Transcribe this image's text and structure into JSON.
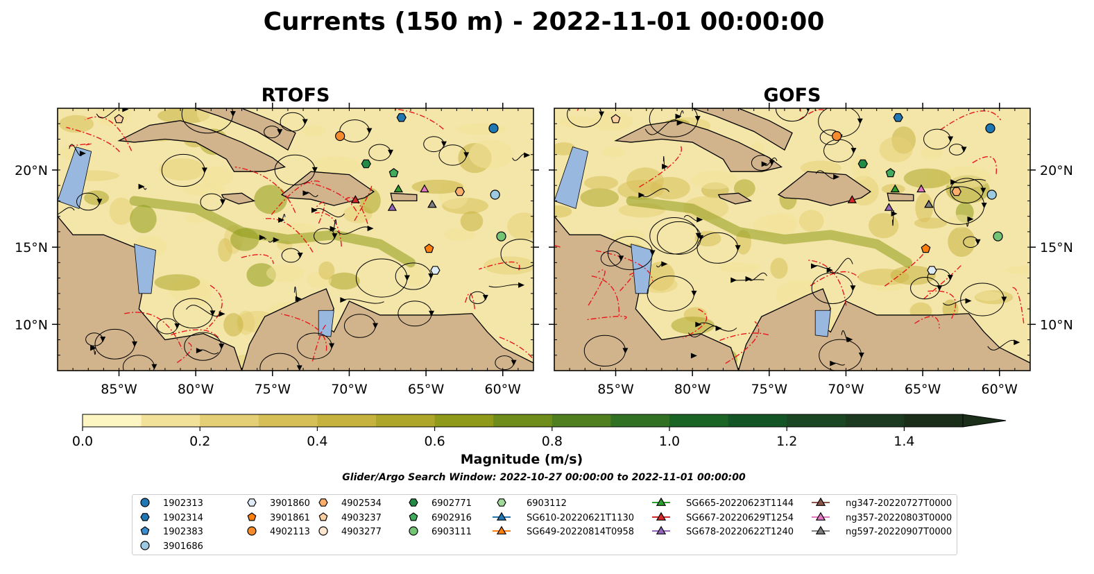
{
  "figure": {
    "title": "Currents (150 m) - 2022-11-01 00:00:00",
    "search_window": "Glider/Argo Search Window: 2022-10-27 00:00:00 to 2022-11-01 00:00:00"
  },
  "chart_data": {
    "type": "map",
    "panels": [
      {
        "title": "RTOFS",
        "lon_range": [
          -89,
          -58
        ],
        "lat_range": [
          7,
          24
        ]
      },
      {
        "title": "GOFS",
        "lon_range": [
          -89,
          -58
        ],
        "lat_range": [
          7,
          24
        ]
      }
    ],
    "x_ticks": [
      {
        "value": -85,
        "label": "85°W"
      },
      {
        "value": -80,
        "label": "80°W"
      },
      {
        "value": -75,
        "label": "75°W"
      },
      {
        "value": -70,
        "label": "70°W"
      },
      {
        "value": -65,
        "label": "65°W"
      },
      {
        "value": -60,
        "label": "60°W"
      }
    ],
    "y_ticks": [
      {
        "value": 10,
        "label": "10°N"
      },
      {
        "value": 15,
        "label": "15°N"
      },
      {
        "value": 20,
        "label": "20°N"
      }
    ],
    "colorbar": {
      "label": "Magnitude (m/s)",
      "range": [
        0,
        1.5
      ],
      "extend": "max",
      "ticks": [
        {
          "value": 0.0,
          "label": "0.0"
        },
        {
          "value": 0.2,
          "label": "0.2"
        },
        {
          "value": 0.4,
          "label": "0.4"
        },
        {
          "value": 0.6,
          "label": "0.6"
        },
        {
          "value": 0.8,
          "label": "0.8"
        },
        {
          "value": 1.0,
          "label": "1.0"
        },
        {
          "value": 1.2,
          "label": "1.2"
        },
        {
          "value": 1.4,
          "label": "1.4"
        }
      ],
      "colors": [
        "#fdf6c2",
        "#f2e199",
        "#e5cf76",
        "#d7bf58",
        "#c6b33f",
        "#aea62a",
        "#8f9a1a",
        "#6f8d1a",
        "#4f7f1f",
        "#307123",
        "#1a6426",
        "#135524",
        "#1a4624",
        "#1b3a1f",
        "#1a2e1a"
      ]
    },
    "legend": {
      "columns": [
        [
          {
            "label": "1902313",
            "marker": "circle",
            "color": "#1f77b4"
          },
          {
            "label": "1902314",
            "marker": "hexagon",
            "color": "#1f77b4"
          },
          {
            "label": "1902383",
            "marker": "pentagon",
            "color": "#3a8ed0"
          },
          {
            "label": "3901686",
            "marker": "circle",
            "color": "#9ecae1"
          }
        ],
        [
          {
            "label": "3901860",
            "marker": "hexagon",
            "color": "#deebf7"
          },
          {
            "label": "3901861",
            "marker": "pentagon",
            "color": "#ff7f0e"
          },
          {
            "label": "4902113",
            "marker": "circle",
            "color": "#f58b2c"
          }
        ],
        [
          {
            "label": "4902534",
            "marker": "hexagon",
            "color": "#fdae6b"
          },
          {
            "label": "4903237",
            "marker": "pentagon",
            "color": "#fdd0a2"
          },
          {
            "label": "4903277",
            "marker": "circle",
            "color": "#fee6ce"
          }
        ],
        [
          {
            "label": "6902771",
            "marker": "hexagon",
            "color": "#238b45"
          },
          {
            "label": "6902916",
            "marker": "pentagon",
            "color": "#41ab5d"
          },
          {
            "label": "6903111",
            "marker": "circle",
            "color": "#74c476"
          }
        ],
        [
          {
            "label": "6903112",
            "marker": "hexagon",
            "color": "#a1d99b"
          },
          {
            "label": "SG610-20220621T1130",
            "marker": "triangle-line",
            "color": "#1f77b4"
          },
          {
            "label": "SG649-20220814T0958",
            "marker": "triangle-line",
            "color": "#ff7f0e"
          }
        ],
        [
          {
            "label": "SG665-20220623T1144",
            "marker": "triangle-line",
            "color": "#2ca02c"
          },
          {
            "label": "SG667-20220629T1254",
            "marker": "triangle-line",
            "color": "#d62728"
          },
          {
            "label": "SG678-20220622T1240",
            "marker": "triangle-line",
            "color": "#9467bd"
          }
        ],
        [
          {
            "label": "ng347-20220727T0000",
            "marker": "triangle-line",
            "color": "#8c564b"
          },
          {
            "label": "ng357-20220803T0000",
            "marker": "triangle-line",
            "color": "#e377c2"
          },
          {
            "label": "ng597-20220907T0000",
            "marker": "triangle-line",
            "color": "#7f7f7f"
          }
        ]
      ]
    },
    "observations": [
      {
        "id": "1902313",
        "lon": -60.6,
        "lat": 22.7
      },
      {
        "id": "1902314",
        "lon": -66.6,
        "lat": 23.4
      },
      {
        "id": "3901686",
        "lon": -60.5,
        "lat": 18.4
      },
      {
        "id": "3901860",
        "lon": -64.4,
        "lat": 13.5
      },
      {
        "id": "3901861",
        "lon": -64.8,
        "lat": 14.9
      },
      {
        "id": "4902113",
        "lon": -70.6,
        "lat": 22.2
      },
      {
        "id": "4902534",
        "lon": -62.8,
        "lat": 18.6
      },
      {
        "id": "4903237",
        "lon": -85.0,
        "lat": 23.3
      },
      {
        "id": "6902771",
        "lon": -68.9,
        "lat": 20.4
      },
      {
        "id": "6902916",
        "lon": -67.1,
        "lat": 19.8
      },
      {
        "id": "6903111",
        "lon": -60.1,
        "lat": 15.7
      },
      {
        "id": "SG665-20220623T1144",
        "lon": -66.8,
        "lat": 18.8
      },
      {
        "id": "SG667-20220629T1254",
        "lon": -69.6,
        "lat": 18.1
      },
      {
        "id": "SG678-20220622T1240",
        "lon": -67.2,
        "lat": 17.6
      },
      {
        "id": "ng347-20220727T0000",
        "lon": -64.6,
        "lat": 17.8
      },
      {
        "id": "ng357-20220803T0000",
        "lon": -65.1,
        "lat": 18.8
      },
      {
        "id": "ng597-20220907T0000",
        "lon": -64.6,
        "lat": 17.8
      }
    ]
  }
}
